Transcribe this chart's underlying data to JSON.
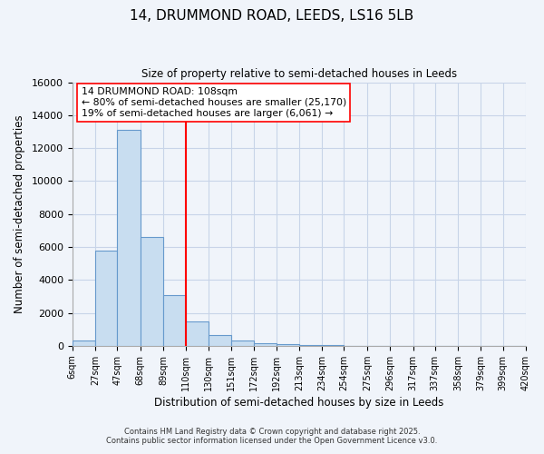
{
  "title": "14, DRUMMOND ROAD, LEEDS, LS16 5LB",
  "subtitle": "Size of property relative to semi-detached houses in Leeds",
  "xlabel": "Distribution of semi-detached houses by size in Leeds",
  "ylabel": "Number of semi-detached properties",
  "bin_edges": [
    6,
    27,
    47,
    68,
    89,
    110,
    130,
    151,
    172,
    192,
    213,
    234,
    254,
    275,
    296,
    317,
    337,
    358,
    379,
    399,
    420
  ],
  "bin_counts": [
    300,
    5800,
    13100,
    6600,
    3100,
    1500,
    650,
    300,
    180,
    100,
    50,
    20,
    10,
    0,
    0,
    0,
    0,
    0,
    0,
    0
  ],
  "bar_color": "#c8ddf0",
  "bar_edge_color": "#6699cc",
  "vline_x": 110,
  "vline_color": "red",
  "annotation_title": "14 DRUMMOND ROAD: 108sqm",
  "annotation_line1": "← 80% of semi-detached houses are smaller (25,170)",
  "annotation_line2": "19% of semi-detached houses are larger (6,061) →",
  "ylim": [
    0,
    16000
  ],
  "yticks": [
    0,
    2000,
    4000,
    6000,
    8000,
    10000,
    12000,
    14000,
    16000
  ],
  "footnote1": "Contains HM Land Registry data © Crown copyright and database right 2025.",
  "footnote2": "Contains public sector information licensed under the Open Government Licence v3.0.",
  "bg_color": "#f0f4fa",
  "grid_color": "#c8d4e8"
}
